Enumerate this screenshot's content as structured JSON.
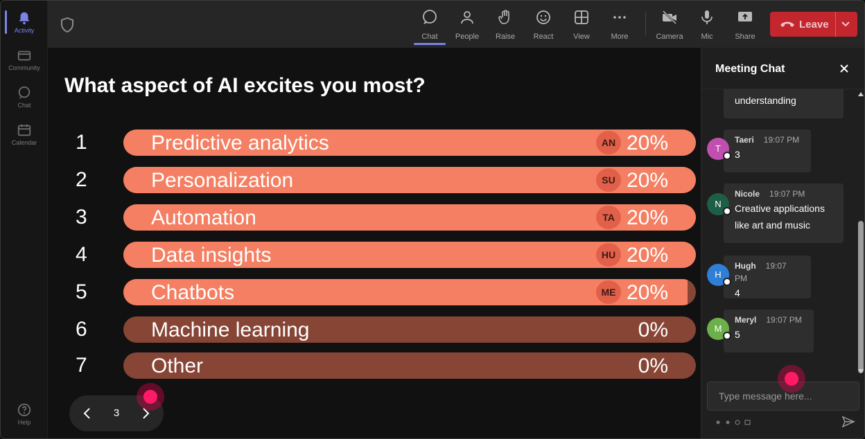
{
  "rail": {
    "items": [
      {
        "label": "Activity"
      },
      {
        "label": "Community"
      },
      {
        "label": "Chat"
      },
      {
        "label": "Calendar"
      }
    ],
    "help_label": "Help"
  },
  "toolbar": {
    "chat": "Chat",
    "people": "People",
    "raise": "Raise",
    "react": "React",
    "view": "View",
    "more": "More",
    "camera": "Camera",
    "mic": "Mic",
    "share": "Share",
    "leave": "Leave"
  },
  "poll": {
    "question": "What aspect of AI excites you most?",
    "options": [
      {
        "num": "1",
        "label": "Predictive analytics",
        "avatar": "AN",
        "percent": "20%",
        "fill": 1.0
      },
      {
        "num": "2",
        "label": "Personalization",
        "avatar": "SU",
        "percent": "20%",
        "fill": 1.0
      },
      {
        "num": "3",
        "label": "Automation",
        "avatar": "TA",
        "percent": "20%",
        "fill": 1.0
      },
      {
        "num": "4",
        "label": "Data insights",
        "avatar": "HU",
        "percent": "20%",
        "fill": 1.0
      },
      {
        "num": "5",
        "label": "Chatbots",
        "avatar": "ME",
        "percent": "20%",
        "fill": 0.985
      },
      {
        "num": "6",
        "label": "Machine learning",
        "avatar": "",
        "percent": "0%",
        "fill": 0
      },
      {
        "num": "7",
        "label": "Other",
        "avatar": "",
        "percent": "0%",
        "fill": 0
      }
    ],
    "page": "3",
    "colors": {
      "fill": "#f47f63",
      "track": "#874536"
    }
  },
  "chat": {
    "title": "Meeting Chat",
    "partial_message": "understanding",
    "messages": [
      {
        "initial": "T",
        "name": "Taeri",
        "time": "19:07 PM",
        "text": "3",
        "color": "#c04fb0"
      },
      {
        "initial": "N",
        "name": "Nicole",
        "time": "19:07 PM",
        "text": "Creative applications like art and music",
        "color": "#1e5e46"
      },
      {
        "initial": "H",
        "name": "Hugh",
        "time": "19:07 PM",
        "text": "4",
        "color": "#2f7fd6"
      },
      {
        "initial": "M",
        "name": "Meryl",
        "time": "19:07 PM",
        "text": "5",
        "color": "#6bb04a"
      }
    ],
    "placeholder": "Type message here..."
  }
}
